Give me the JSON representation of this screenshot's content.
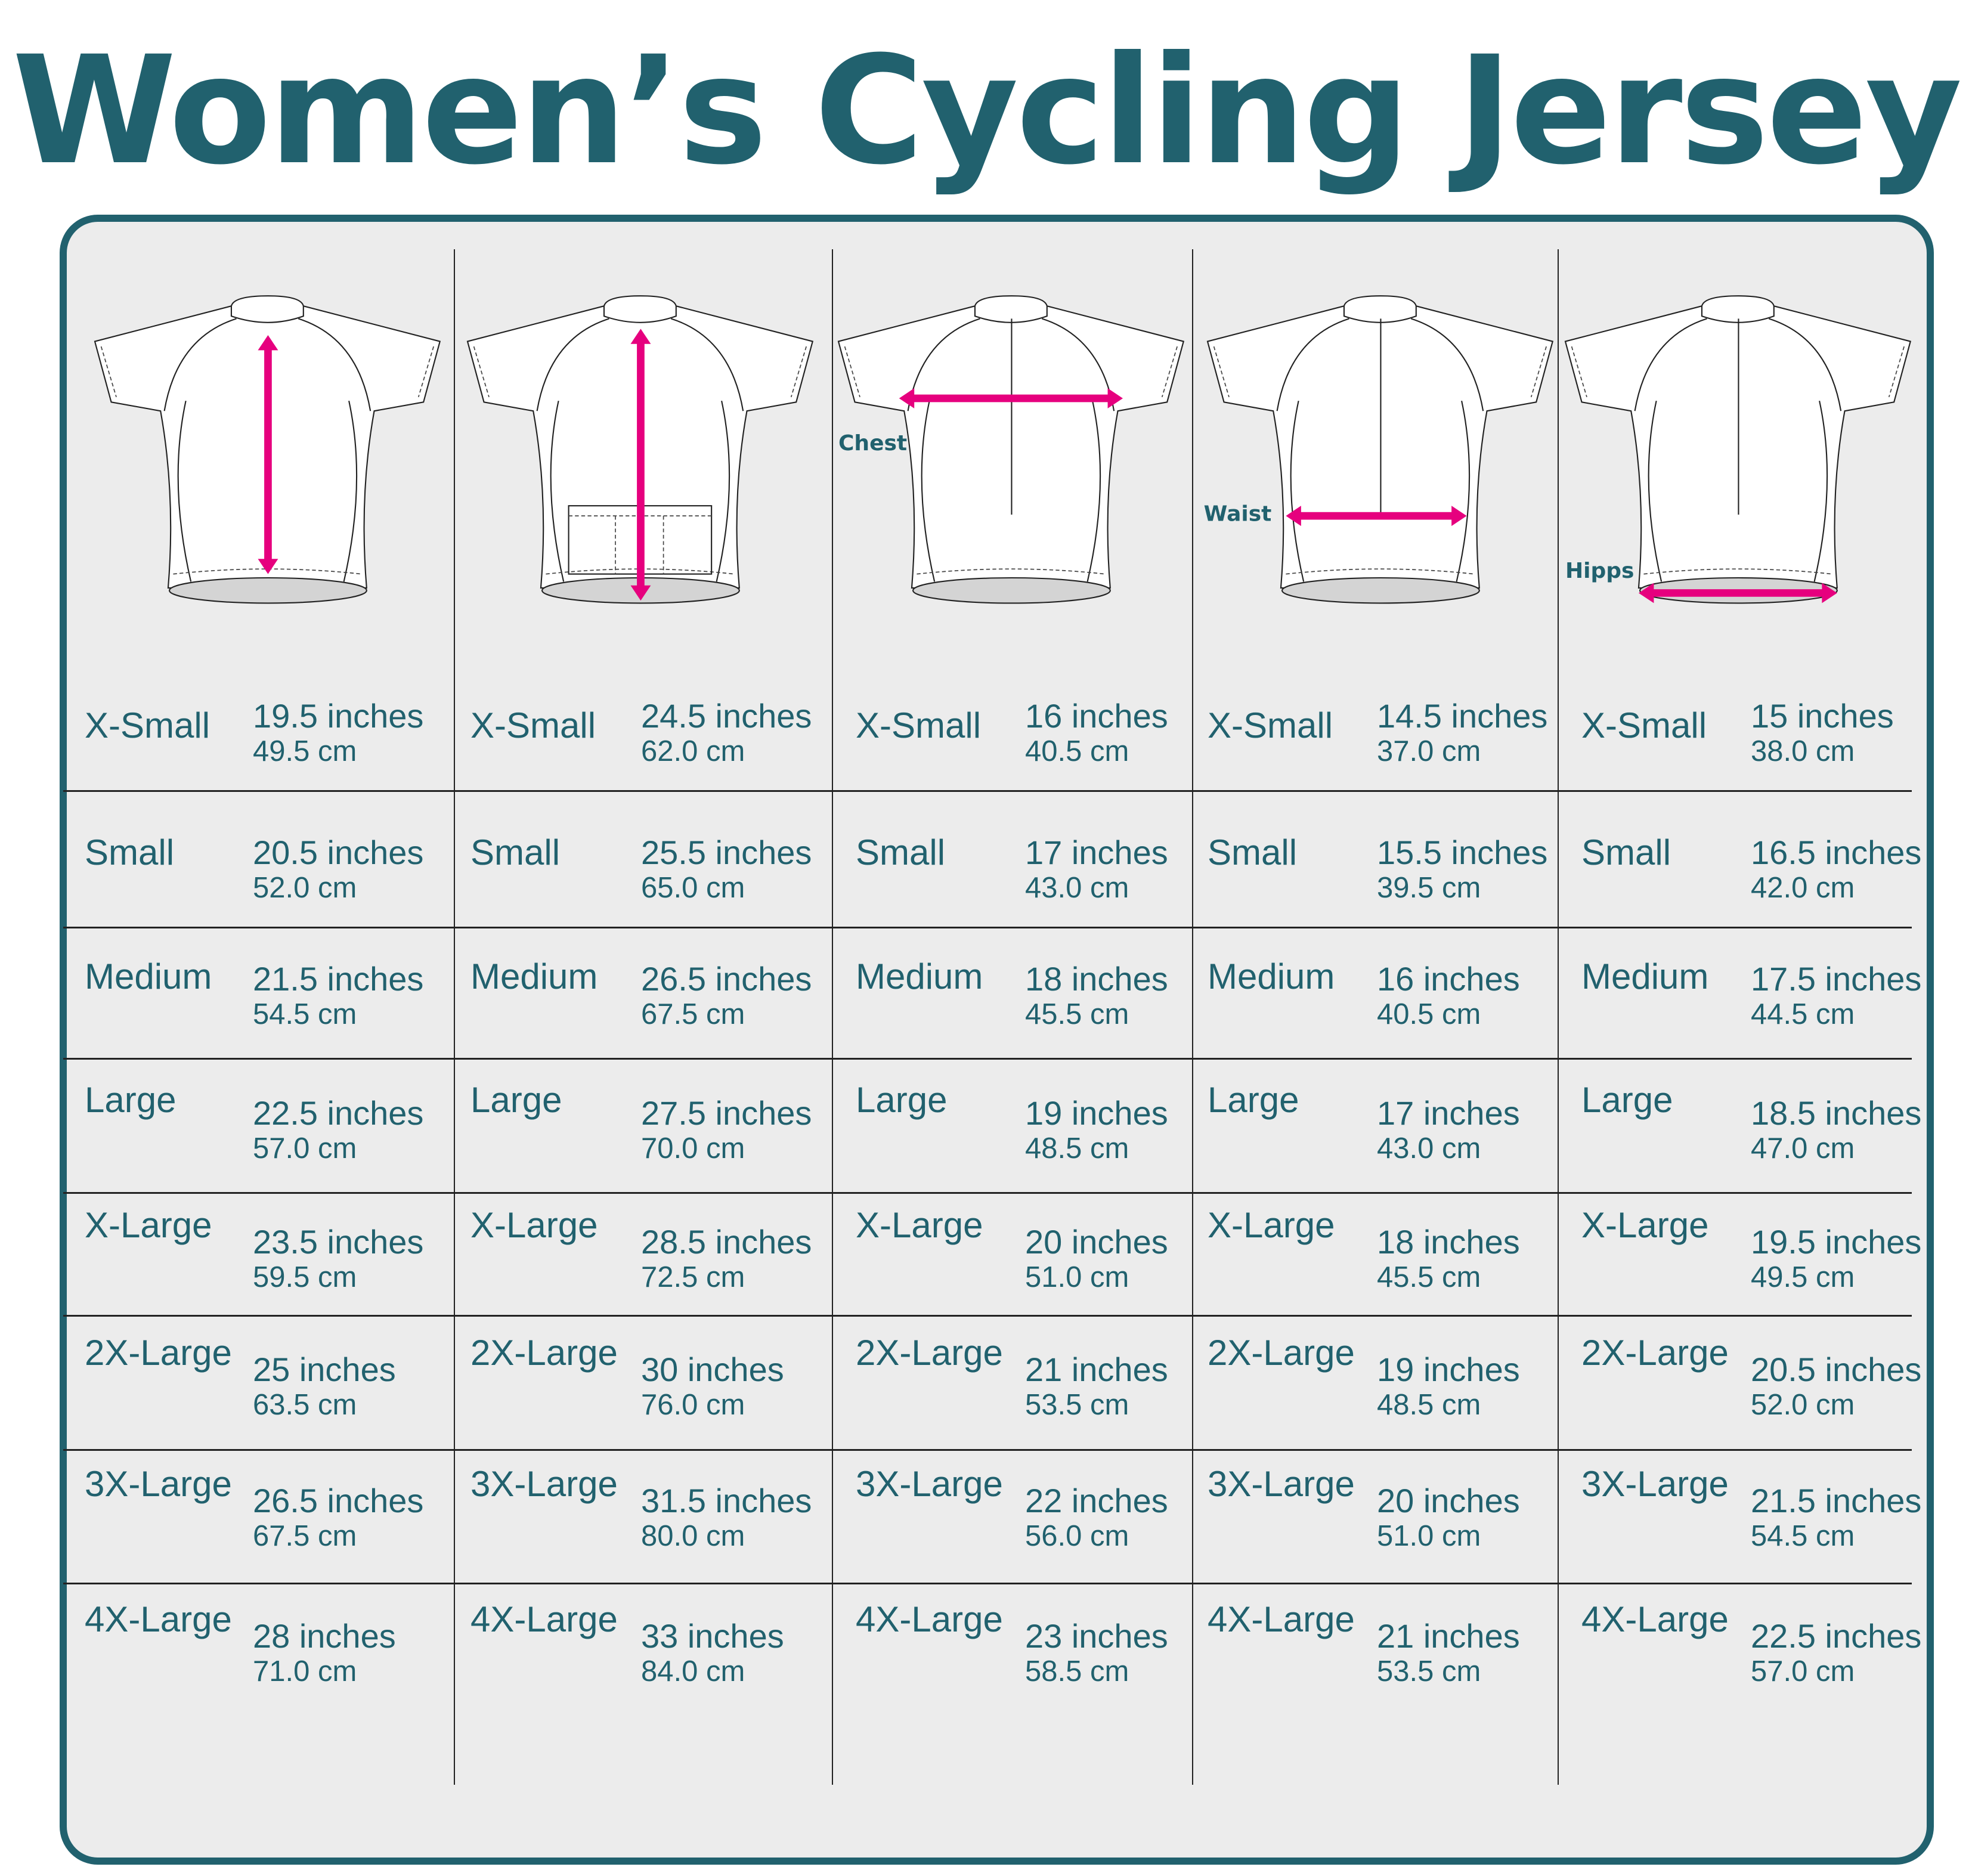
{
  "title": "Women’s Cycling  Jersey Sizing",
  "colors": {
    "accent": "#21616e",
    "arrow": "#e6007e",
    "panel": "#ececec"
  },
  "columns": [
    {
      "measure": "length-front",
      "label": "",
      "rows": [
        {
          "size": "X-Small",
          "inches": "19.5 inches",
          "cm": "49.5 cm"
        },
        {
          "size": "Small",
          "inches": "20.5 inches",
          "cm": "52.0 cm"
        },
        {
          "size": "Medium",
          "inches": "21.5 inches",
          "cm": "54.5 cm"
        },
        {
          "size": "Large",
          "inches": "22.5 inches",
          "cm": "57.0 cm"
        },
        {
          "size": "X-Large",
          "inches": "23.5 inches",
          "cm": "59.5 cm"
        },
        {
          "size": "2X-Large",
          "inches": "25 inches",
          "cm": "63.5 cm"
        },
        {
          "size": "3X-Large",
          "inches": "26.5 inches",
          "cm": "67.5 cm"
        },
        {
          "size": "4X-Large",
          "inches": "28 inches",
          "cm": "71.0 cm"
        }
      ]
    },
    {
      "measure": "length-back",
      "label": "",
      "rows": [
        {
          "size": "X-Small",
          "inches": "24.5 inches",
          "cm": "62.0 cm"
        },
        {
          "size": "Small",
          "inches": "25.5 inches",
          "cm": "65.0 cm"
        },
        {
          "size": "Medium",
          "inches": "26.5 inches",
          "cm": "67.5 cm"
        },
        {
          "size": "Large",
          "inches": "27.5 inches",
          "cm": "70.0 cm"
        },
        {
          "size": "X-Large",
          "inches": "28.5 inches",
          "cm": "72.5 cm"
        },
        {
          "size": "2X-Large",
          "inches": "30 inches",
          "cm": "76.0 cm"
        },
        {
          "size": "3X-Large",
          "inches": "31.5 inches",
          "cm": "80.0 cm"
        },
        {
          "size": "4X-Large",
          "inches": "33 inches",
          "cm": "84.0 cm"
        }
      ]
    },
    {
      "measure": "chest",
      "label": "Chest",
      "rows": [
        {
          "size": "X-Small",
          "inches": "16 inches",
          "cm": "40.5 cm"
        },
        {
          "size": "Small",
          "inches": "17 inches",
          "cm": "43.0 cm"
        },
        {
          "size": "Medium",
          "inches": "18 inches",
          "cm": "45.5 cm"
        },
        {
          "size": "Large",
          "inches": "19 inches",
          "cm": "48.5 cm"
        },
        {
          "size": "X-Large",
          "inches": "20 inches",
          "cm": "51.0 cm"
        },
        {
          "size": "2X-Large",
          "inches": "21 inches",
          "cm": "53.5 cm"
        },
        {
          "size": "3X-Large",
          "inches": "22 inches",
          "cm": "56.0 cm"
        },
        {
          "size": "4X-Large",
          "inches": "23 inches",
          "cm": "58.5 cm"
        }
      ]
    },
    {
      "measure": "waist",
      "label": "Waist",
      "rows": [
        {
          "size": "X-Small",
          "inches": "14.5 inches",
          "cm": "37.0 cm"
        },
        {
          "size": "Small",
          "inches": "15.5 inches",
          "cm": "39.5 cm"
        },
        {
          "size": "Medium",
          "inches": "16 inches",
          "cm": "40.5 cm"
        },
        {
          "size": "Large",
          "inches": "17 inches",
          "cm": "43.0 cm"
        },
        {
          "size": "X-Large",
          "inches": "18 inches",
          "cm": "45.5 cm"
        },
        {
          "size": "2X-Large",
          "inches": "19 inches",
          "cm": "48.5 cm"
        },
        {
          "size": "3X-Large",
          "inches": "20 inches",
          "cm": "51.0 cm"
        },
        {
          "size": "4X-Large",
          "inches": "21 inches",
          "cm": "53.5 cm"
        }
      ]
    },
    {
      "measure": "hips",
      "label": "Hipps",
      "rows": [
        {
          "size": "X-Small",
          "inches": "15 inches",
          "cm": "38.0 cm"
        },
        {
          "size": "Small",
          "inches": "16.5 inches",
          "cm": "42.0 cm"
        },
        {
          "size": "Medium",
          "inches": "17.5 inches",
          "cm": "44.5 cm"
        },
        {
          "size": "Large",
          "inches": "18.5 inches",
          "cm": "47.0 cm"
        },
        {
          "size": "X-Large",
          "inches": "19.5 inches",
          "cm": "49.5 cm"
        },
        {
          "size": "2X-Large",
          "inches": "20.5 inches",
          "cm": "52.0 cm"
        },
        {
          "size": "3X-Large",
          "inches": "21.5 inches",
          "cm": "54.5 cm"
        },
        {
          "size": "4X-Large",
          "inches": "22.5 inches",
          "cm": "57.0 cm"
        }
      ]
    }
  ]
}
